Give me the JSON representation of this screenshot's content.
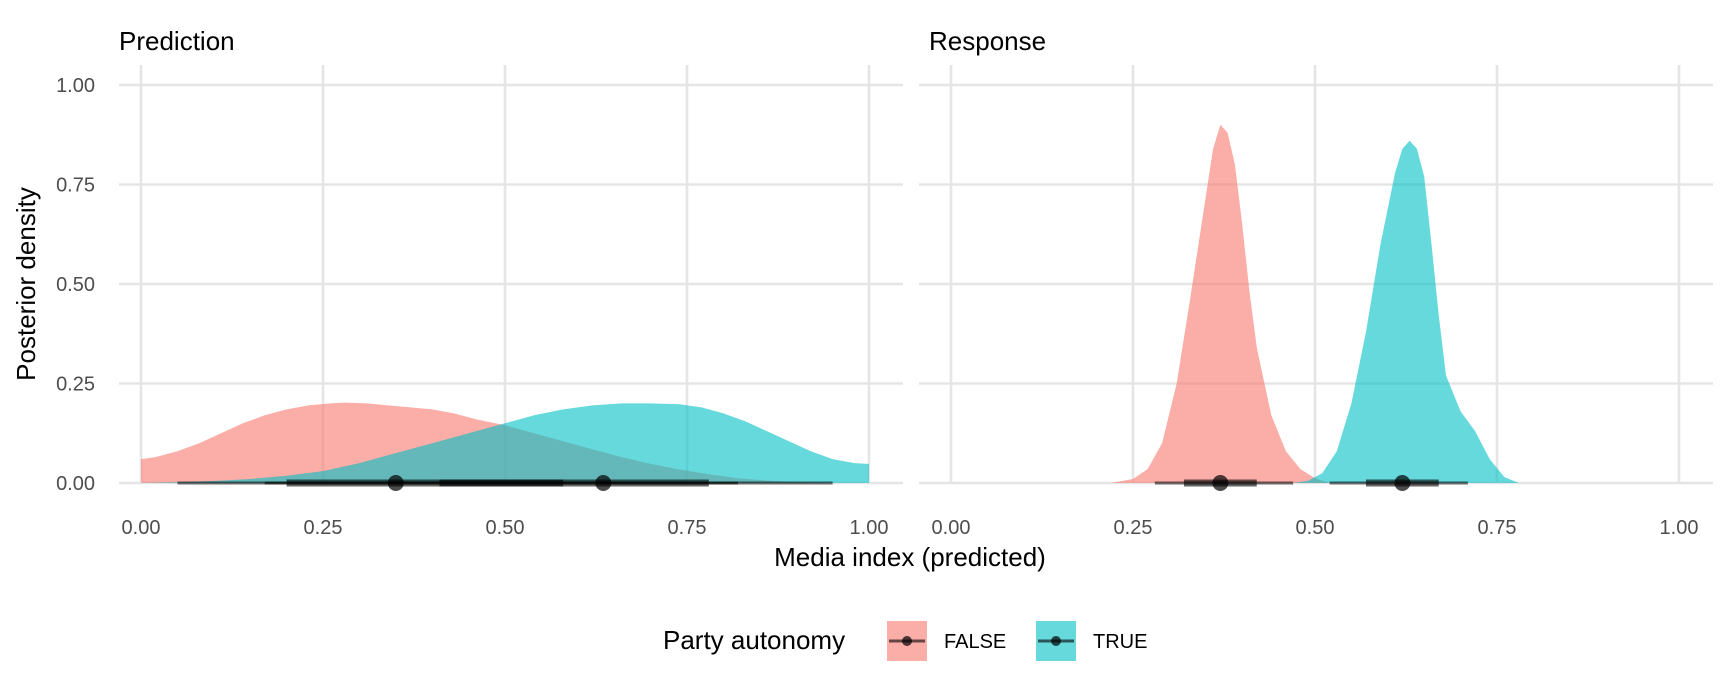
{
  "chart_data": {
    "type": "area",
    "subtype": "density with point-interval summaries (faceted)",
    "xlabel": "Media index (predicted)",
    "ylabel": "Posterior density",
    "xlim": [
      0,
      1
    ],
    "ylim": [
      0,
      1
    ],
    "x_ticks": [
      "0.00",
      "0.25",
      "0.50",
      "0.75",
      "1.00"
    ],
    "y_ticks": [
      "0.00",
      "0.25",
      "0.50",
      "0.75",
      "1.00"
    ],
    "grid": true,
    "legend": {
      "title": "Party autonomy",
      "position": "bottom",
      "entries": [
        {
          "label": "FALSE",
          "color": "#F8766D"
        },
        {
          "label": "TRUE",
          "color": "#00BFC4"
        }
      ]
    },
    "panels": [
      {
        "title": "Prediction",
        "series": [
          {
            "group": "FALSE",
            "color": "#F8766D",
            "density": [
              [
                0.0,
                0.06
              ],
              [
                0.02,
                0.065
              ],
              [
                0.05,
                0.08
              ],
              [
                0.08,
                0.1
              ],
              [
                0.11,
                0.125
              ],
              [
                0.14,
                0.15
              ],
              [
                0.17,
                0.17
              ],
              [
                0.2,
                0.185
              ],
              [
                0.23,
                0.195
              ],
              [
                0.26,
                0.2
              ],
              [
                0.28,
                0.202
              ],
              [
                0.31,
                0.2
              ],
              [
                0.34,
                0.195
              ],
              [
                0.37,
                0.19
              ],
              [
                0.4,
                0.185
              ],
              [
                0.43,
                0.175
              ],
              [
                0.46,
                0.16
              ],
              [
                0.5,
                0.145
              ],
              [
                0.54,
                0.125
              ],
              [
                0.58,
                0.105
              ],
              [
                0.62,
                0.085
              ],
              [
                0.66,
                0.065
              ],
              [
                0.7,
                0.048
              ],
              [
                0.74,
                0.034
              ],
              [
                0.78,
                0.022
              ],
              [
                0.82,
                0.012
              ],
              [
                0.86,
                0.006
              ],
              [
                0.9,
                0.002
              ],
              [
                0.95,
                0.0
              ]
            ],
            "median": 0.35,
            "interval_66": [
              0.2,
              0.58
            ],
            "interval_95": [
              0.05,
              0.82
            ]
          },
          {
            "group": "TRUE",
            "color": "#00BFC4",
            "density": [
              [
                0.0,
                0.0
              ],
              [
                0.05,
                0.002
              ],
              [
                0.1,
                0.005
              ],
              [
                0.15,
                0.01
              ],
              [
                0.2,
                0.018
              ],
              [
                0.25,
                0.03
              ],
              [
                0.3,
                0.05
              ],
              [
                0.35,
                0.075
              ],
              [
                0.4,
                0.1
              ],
              [
                0.45,
                0.125
              ],
              [
                0.5,
                0.15
              ],
              [
                0.54,
                0.17
              ],
              [
                0.58,
                0.185
              ],
              [
                0.62,
                0.195
              ],
              [
                0.66,
                0.2
              ],
              [
                0.7,
                0.2
              ],
              [
                0.74,
                0.198
              ],
              [
                0.77,
                0.19
              ],
              [
                0.8,
                0.175
              ],
              [
                0.83,
                0.155
              ],
              [
                0.86,
                0.13
              ],
              [
                0.89,
                0.105
              ],
              [
                0.92,
                0.08
              ],
              [
                0.95,
                0.06
              ],
              [
                0.98,
                0.05
              ],
              [
                1.0,
                0.048
              ]
            ],
            "median": 0.635,
            "interval_66": [
              0.41,
              0.78
            ],
            "interval_95": [
              0.17,
              0.95
            ]
          }
        ]
      },
      {
        "title": "Response",
        "series": [
          {
            "group": "FALSE",
            "color": "#F8766D",
            "density": [
              [
                0.22,
                0.0
              ],
              [
                0.25,
                0.01
              ],
              [
                0.27,
                0.035
              ],
              [
                0.29,
                0.1
              ],
              [
                0.31,
                0.25
              ],
              [
                0.33,
                0.48
              ],
              [
                0.35,
                0.72
              ],
              [
                0.36,
                0.84
              ],
              [
                0.37,
                0.9
              ],
              [
                0.38,
                0.88
              ],
              [
                0.39,
                0.8
              ],
              [
                0.4,
                0.65
              ],
              [
                0.41,
                0.48
              ],
              [
                0.42,
                0.34
              ],
              [
                0.44,
                0.17
              ],
              [
                0.46,
                0.08
              ],
              [
                0.48,
                0.035
              ],
              [
                0.5,
                0.012
              ],
              [
                0.52,
                0.0
              ]
            ],
            "median": 0.37,
            "interval_66": [
              0.32,
              0.42
            ],
            "interval_95": [
              0.28,
              0.47
            ]
          },
          {
            "group": "TRUE",
            "color": "#00BFC4",
            "density": [
              [
                0.47,
                0.0
              ],
              [
                0.49,
                0.005
              ],
              [
                0.51,
                0.025
              ],
              [
                0.53,
                0.08
              ],
              [
                0.55,
                0.2
              ],
              [
                0.57,
                0.38
              ],
              [
                0.59,
                0.6
              ],
              [
                0.61,
                0.78
              ],
              [
                0.62,
                0.84
              ],
              [
                0.63,
                0.86
              ],
              [
                0.64,
                0.84
              ],
              [
                0.65,
                0.77
              ],
              [
                0.66,
                0.6
              ],
              [
                0.67,
                0.42
              ],
              [
                0.68,
                0.27
              ],
              [
                0.7,
                0.18
              ],
              [
                0.72,
                0.13
              ],
              [
                0.74,
                0.06
              ],
              [
                0.76,
                0.015
              ],
              [
                0.78,
                0.0
              ]
            ],
            "median": 0.62,
            "interval_66": [
              0.57,
              0.67
            ],
            "interval_95": [
              0.52,
              0.71
            ]
          }
        ]
      }
    ]
  }
}
